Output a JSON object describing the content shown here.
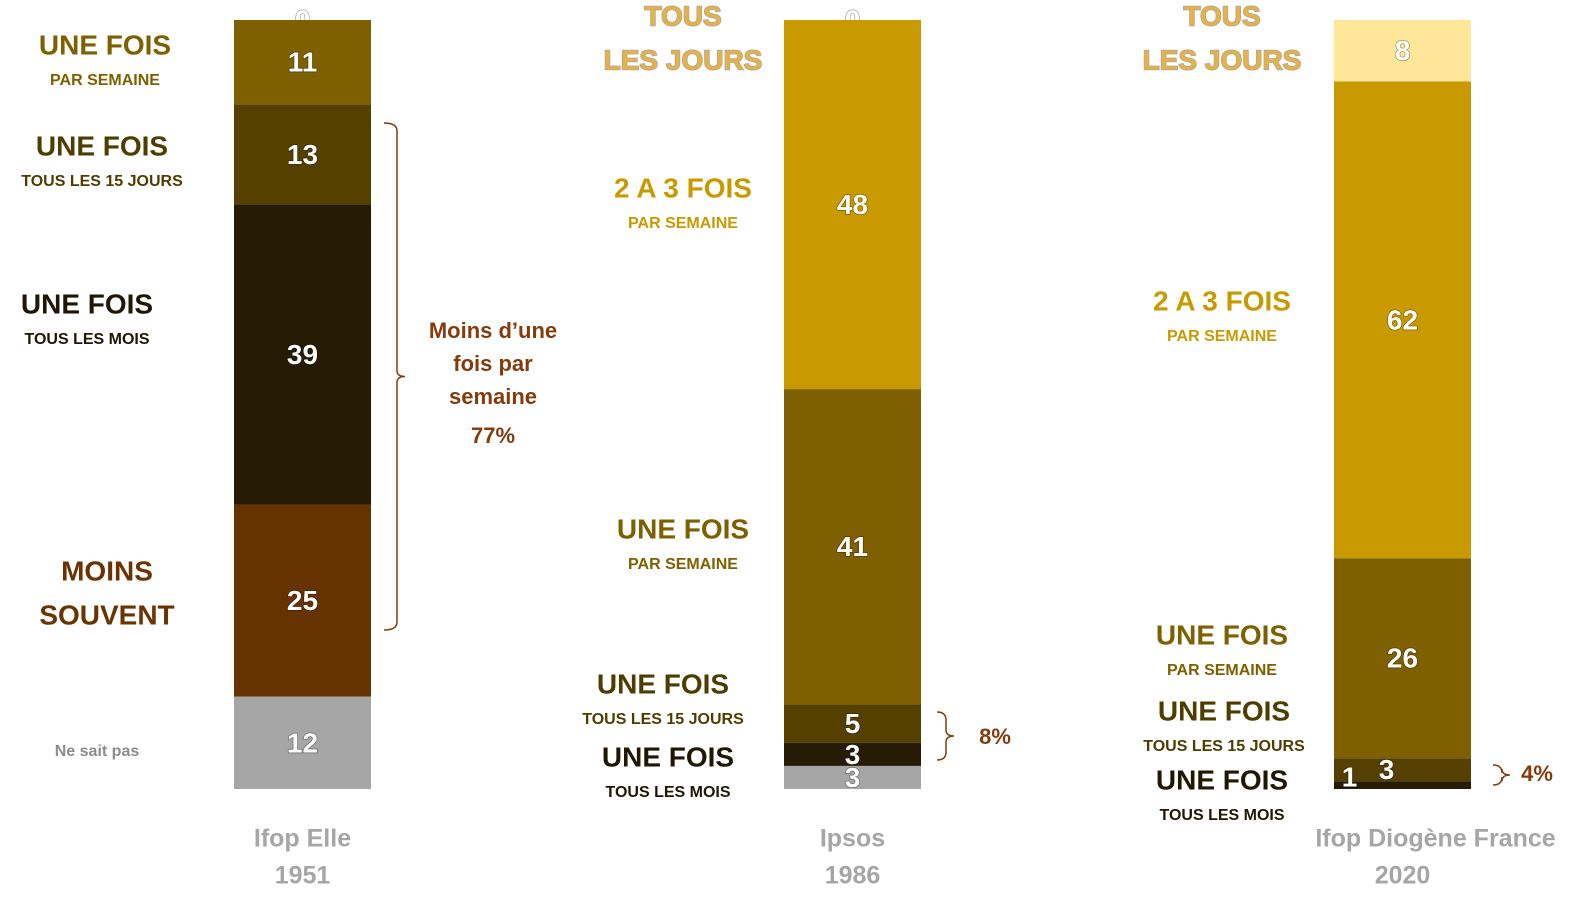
{
  "chart_data": {
    "type": "stacked_bar",
    "categories": [
      "Ifop Elle",
      "Ipsos",
      "Ifop Diogène France"
    ],
    "years": [
      "1951",
      "1986",
      "2020"
    ],
    "ylim": [
      0,
      100
    ],
    "series": [
      {
        "name": "TOUS",
        "detail": "LES JOURS",
        "color": "#ffe699",
        "label_color": "#e6b245",
        "values": [
          0,
          0,
          8
        ]
      },
      {
        "name": "2 A 3 FOIS",
        "detail": "PAR SEMAINE",
        "color": "#c99a00",
        "label_color": "#c99a00",
        "values": [
          null,
          48,
          62
        ]
      },
      {
        "name": "UNE FOIS",
        "detail": "PAR SEMAINE",
        "color": "#7f6000",
        "label_color": "#7f6000",
        "values": [
          11,
          41,
          26
        ]
      },
      {
        "name": "UNE FOIS",
        "detail": "TOUS LES 15 JOURS",
        "color": "#554000",
        "label_color": "#4f3d00",
        "values": [
          13,
          5,
          3
        ]
      },
      {
        "name": "UNE FOIS",
        "detail": "TOUS LES MOIS",
        "color": "#261c05",
        "label_color": "#1f1704",
        "values": [
          39,
          3,
          1
        ]
      },
      {
        "name": "MOINS",
        "detail": "SOUVENT",
        "color": "#663300",
        "label_color": "#6b3300",
        "values": [
          25,
          null,
          null
        ]
      },
      {
        "name": "Ne sait pas",
        "color": "#a6a6a6",
        "label_color": "#8c8c8c",
        "values": [
          12,
          3,
          null
        ]
      }
    ],
    "brackets": [
      {
        "text": [
          "Moins d’une",
          "fois par",
          "semaine"
        ],
        "value": 77,
        "value_label": "77%"
      },
      {
        "value": 8,
        "value_label": "8%"
      },
      {
        "value": 4,
        "value_label": "4%"
      }
    ]
  }
}
